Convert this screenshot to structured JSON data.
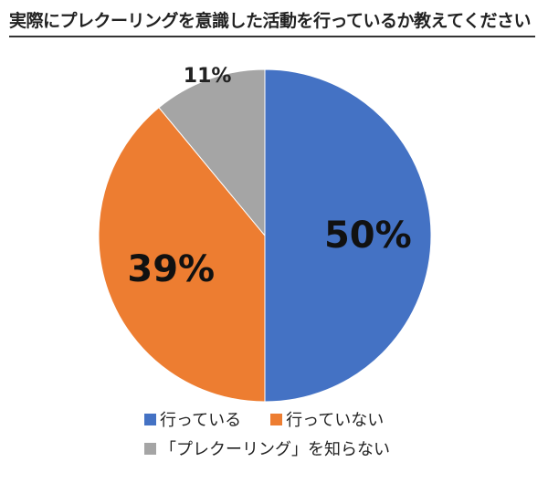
{
  "chart_data": {
    "type": "pie",
    "title": "実際にプレクーリングを意識した活動を行っているか教えてください",
    "categories": [
      "行っている",
      "行っていない",
      "「プレクーリング」を知らない"
    ],
    "values": [
      50,
      39,
      11
    ],
    "data_labels": [
      "50%",
      "39%",
      "11%"
    ],
    "colors": [
      "#4472C4",
      "#ED7D31",
      "#A5A5A5"
    ],
    "start_angle": "12 o'clock",
    "direction": "clockwise",
    "legend_position": "bottom"
  }
}
